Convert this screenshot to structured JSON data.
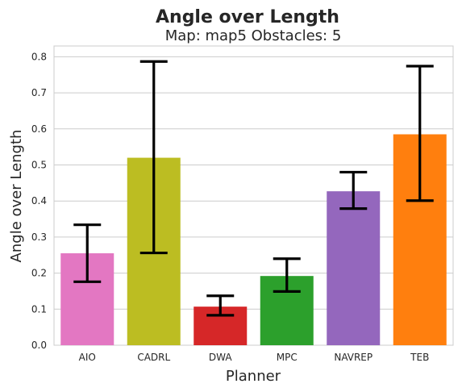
{
  "chart_data": {
    "type": "bar",
    "title": "Angle over Length",
    "subtitle": "Map: map5 Obstacles: 5",
    "xlabel": "Planner",
    "ylabel": "Angle over Length",
    "ylim": [
      0,
      0.83
    ],
    "yticks": [
      "0.0",
      "0.1",
      "0.2",
      "0.3",
      "0.4",
      "0.5",
      "0.6",
      "0.7",
      "0.8"
    ],
    "grid": true,
    "categories": [
      "AIO",
      "CADRL",
      "DWA",
      "MPC",
      "NAVREP",
      "TEB"
    ],
    "values": [
      0.255,
      0.52,
      0.107,
      0.192,
      0.427,
      0.585
    ],
    "error_low": [
      0.176,
      0.256,
      0.083,
      0.149,
      0.379,
      0.401
    ],
    "error_high": [
      0.334,
      0.787,
      0.137,
      0.24,
      0.48,
      0.774
    ],
    "colors": [
      "#e377c2",
      "#bcbd22",
      "#d62728",
      "#2ca02c",
      "#9467bd",
      "#ff7f0e"
    ]
  }
}
